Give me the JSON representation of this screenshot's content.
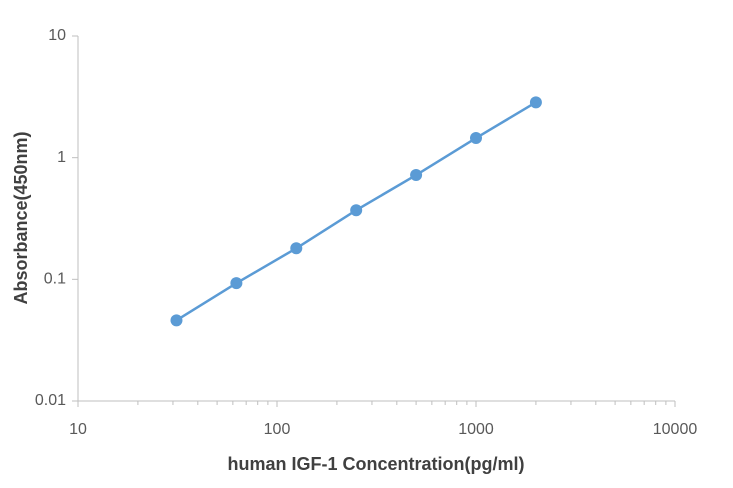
{
  "chart_data": {
    "type": "line",
    "x_label": "human IGF-1 Concentration(pg/ml)",
    "y_label": "Absorbance(450nm)",
    "x": [
      31.25,
      62.5,
      125,
      250,
      500,
      1000,
      2000
    ],
    "series": [
      {
        "color": "#5b9bd5",
        "values": [
          0.046,
          0.093,
          0.18,
          0.37,
          0.72,
          1.45,
          2.85
        ]
      }
    ],
    "xlim": [
      10,
      10000
    ],
    "xticks": [
      10,
      100,
      1000,
      10000
    ],
    "ylim": [
      0.01,
      10
    ],
    "yticks": [
      0.01,
      0.1,
      1,
      10
    ],
    "xscale": "log",
    "yscale": "log",
    "grid": false,
    "markers": true
  }
}
